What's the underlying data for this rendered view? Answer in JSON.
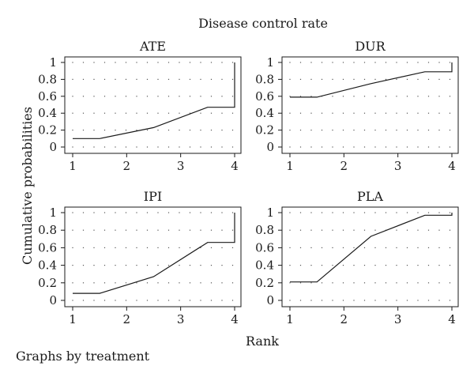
{
  "figure": {
    "title": "Disease control rate",
    "ylabel": "Cumulative probabilities",
    "xlabel": "Rank",
    "note": "Graphs by treatment"
  },
  "chart_data": {
    "type": "line",
    "title": "Disease control rate",
    "xlabel": "Rank",
    "ylabel": "Cumulative probabilities",
    "xticks": [
      1,
      2,
      3,
      4
    ],
    "yticks": [
      0,
      0.2,
      0.4,
      0.6,
      0.8,
      1
    ],
    "xlim": [
      1,
      4
    ],
    "ylim": [
      0,
      1
    ],
    "grid": true,
    "panels": [
      {
        "title": "ATE",
        "x": [
          1,
          1.5,
          2.5,
          3.5,
          4,
          4
        ],
        "y": [
          0.1,
          0.1,
          0.23,
          0.47,
          0.47,
          1.0
        ]
      },
      {
        "title": "DUR",
        "x": [
          1,
          1.5,
          2.5,
          3.5,
          4,
          4
        ],
        "y": [
          0.59,
          0.59,
          0.75,
          0.89,
          0.89,
          1.0
        ]
      },
      {
        "title": "IPI",
        "x": [
          1,
          1.5,
          2.5,
          3.5,
          4,
          4
        ],
        "y": [
          0.08,
          0.08,
          0.27,
          0.66,
          0.66,
          1.0
        ]
      },
      {
        "title": "PLA",
        "x": [
          1,
          1.5,
          2.5,
          3.5,
          4,
          4
        ],
        "y": [
          0.21,
          0.21,
          0.73,
          0.97,
          0.97,
          1.0
        ]
      }
    ]
  }
}
